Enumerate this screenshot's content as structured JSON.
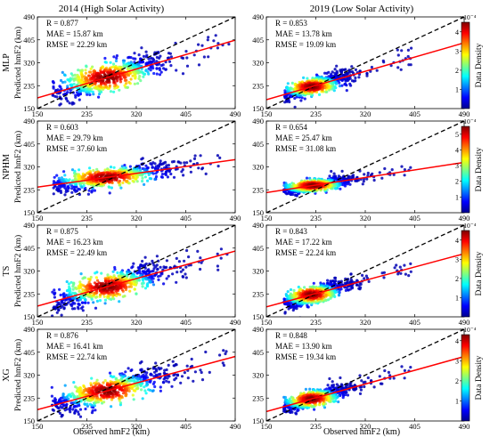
{
  "figure": {
    "col_titles": [
      "2014 (High Solar Activity)",
      "2019 (Low Solar Activity)"
    ],
    "row_labels": [
      "MLP",
      "NPHM",
      "TS",
      "XG"
    ],
    "ylabel": "Predicted hmF2 (km)",
    "xlabel": "Observed hmF2 (km)",
    "colorbar_label": "Data Density",
    "colorbar_exponent": "×10⁻⁴",
    "fit_line_color": "#ff0000",
    "identity_line_color": "#000000",
    "colormap": "jet"
  },
  "chart_data": [
    {
      "type": "scatter",
      "model": "MLP",
      "year": "2014",
      "stats": [
        "R = 0.877",
        "MAE = 15.87 km",
        "RMSE = 22.29 km"
      ],
      "xlim": [
        150,
        490
      ],
      "ylim": [
        150,
        490
      ],
      "xticks": [
        150,
        235,
        320,
        405,
        490
      ],
      "yticks": [
        150,
        235,
        320,
        405,
        490
      ],
      "fit": {
        "slope": 0.63,
        "intercept": 95
      },
      "cloud": {
        "cx": 270,
        "cy": 265,
        "sx": 58,
        "sy": 48,
        "x_range": [
          175,
          480
        ]
      }
    },
    {
      "type": "scatter",
      "model": "MLP",
      "year": "2019",
      "stats": [
        "R = 0.853",
        "MAE = 13.78 km",
        "RMSE = 19.09 km"
      ],
      "xlim": [
        150,
        490
      ],
      "ylim": [
        150,
        490
      ],
      "xticks": [
        150,
        235,
        320,
        405,
        490
      ],
      "yticks": [
        150,
        235,
        320,
        405,
        490
      ],
      "fit": {
        "slope": 0.62,
        "intercept": 90
      },
      "cloud": {
        "cx": 228,
        "cy": 230,
        "sx": 35,
        "sy": 28,
        "x_range": [
          180,
          400
        ]
      },
      "colorbar": {
        "max": 4.5,
        "ticks": [
          1,
          2,
          3,
          4
        ]
      }
    },
    {
      "type": "scatter",
      "model": "NPHM",
      "year": "2014",
      "stats": [
        "R = 0.603",
        "MAE = 29.79 km",
        "RMSE = 37.60 km"
      ],
      "xlim": [
        150,
        490
      ],
      "ylim": [
        150,
        490
      ],
      "xticks": [
        150,
        235,
        320,
        405,
        490
      ],
      "yticks": [
        150,
        235,
        320,
        405,
        490
      ],
      "fit": {
        "slope": 0.3,
        "intercept": 200
      },
      "cloud": {
        "cx": 270,
        "cy": 290,
        "sx": 60,
        "sy": 32,
        "x_range": [
          175,
          470
        ]
      }
    },
    {
      "type": "scatter",
      "model": "NPHM",
      "year": "2019",
      "stats": [
        "R = 0.654",
        "MAE = 25.47 km",
        "RMSE = 31.08 km"
      ],
      "xlim": [
        150,
        490
      ],
      "ylim": [
        150,
        490
      ],
      "xticks": [
        150,
        235,
        320,
        405,
        490
      ],
      "yticks": [
        150,
        235,
        320,
        405,
        490
      ],
      "fit": {
        "slope": 0.33,
        "intercept": 175
      },
      "cloud": {
        "cx": 230,
        "cy": 250,
        "sx": 36,
        "sy": 20,
        "x_range": [
          180,
          400
        ]
      },
      "colorbar": {
        "max": 5.5,
        "ticks": [
          1,
          2,
          3,
          4,
          5
        ]
      }
    },
    {
      "type": "scatter",
      "model": "TS",
      "year": "2014",
      "stats": [
        "R = 0.875",
        "MAE = 16.23 km",
        "RMSE = 22.49 km"
      ],
      "xlim": [
        150,
        490
      ],
      "ylim": [
        150,
        490
      ],
      "xticks": [
        150,
        235,
        320,
        405,
        490
      ],
      "yticks": [
        150,
        235,
        320,
        405,
        490
      ],
      "fit": {
        "slope": 0.6,
        "intercept": 100
      },
      "cloud": {
        "cx": 270,
        "cy": 265,
        "sx": 58,
        "sy": 45,
        "x_range": [
          175,
          480
        ]
      }
    },
    {
      "type": "scatter",
      "model": "TS",
      "year": "2019",
      "stats": [
        "R = 0.843",
        "MAE = 17.22 km",
        "RMSE = 22.24 km"
      ],
      "xlim": [
        150,
        490
      ],
      "ylim": [
        150,
        490
      ],
      "xticks": [
        150,
        235,
        320,
        405,
        490
      ],
      "yticks": [
        150,
        235,
        320,
        405,
        490
      ],
      "fit": {
        "slope": 0.58,
        "intercept": 100
      },
      "cloud": {
        "cx": 228,
        "cy": 232,
        "sx": 35,
        "sy": 28,
        "x_range": [
          180,
          400
        ]
      },
      "colorbar": {
        "max": 4.5,
        "ticks": [
          1,
          2,
          3,
          4
        ]
      }
    },
    {
      "type": "scatter",
      "model": "XG",
      "year": "2014",
      "stats": [
        "R = 0.876",
        "MAE = 16.41 km",
        "RMSE = 22.74 km"
      ],
      "xlim": [
        150,
        490
      ],
      "ylim": [
        150,
        490
      ],
      "xticks": [
        150,
        235,
        320,
        405,
        490
      ],
      "yticks": [
        150,
        235,
        320,
        405,
        490
      ],
      "fit": {
        "slope": 0.58,
        "intercept": 105
      },
      "cloud": {
        "cx": 270,
        "cy": 265,
        "sx": 58,
        "sy": 45,
        "x_range": [
          175,
          480
        ]
      }
    },
    {
      "type": "scatter",
      "model": "XG",
      "year": "2019",
      "stats": [
        "R = 0.848",
        "MAE = 13.90 km",
        "RMSE = 19.34 km"
      ],
      "xlim": [
        150,
        490
      ],
      "ylim": [
        150,
        490
      ],
      "xticks": [
        150,
        235,
        320,
        405,
        490
      ],
      "yticks": [
        150,
        235,
        320,
        405,
        490
      ],
      "fit": {
        "slope": 0.6,
        "intercept": 95
      },
      "cloud": {
        "cx": 228,
        "cy": 230,
        "sx": 35,
        "sy": 27,
        "x_range": [
          180,
          400
        ]
      },
      "colorbar": {
        "max": 4.3,
        "ticks": [
          1,
          2,
          3,
          4
        ]
      }
    }
  ]
}
